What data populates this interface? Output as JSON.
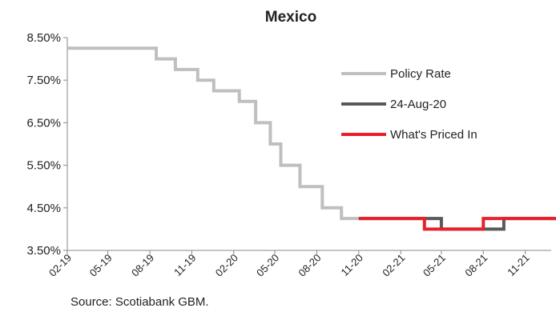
{
  "chart_data": {
    "type": "line",
    "title": "Mexico",
    "xlabel": "",
    "ylabel": "",
    "x_ticks": [
      "02-19",
      "05-19",
      "08-19",
      "11-19",
      "02-20",
      "05-20",
      "08-20",
      "11-20",
      "02-21",
      "05-21",
      "08-21",
      "11-21"
    ],
    "y_ticks": [
      "8.50%",
      "7.50%",
      "6.50%",
      "5.50%",
      "4.50%",
      "3.50%"
    ],
    "ylim": [
      3.5,
      8.5
    ],
    "grid": false,
    "legend_placement": "right",
    "series": [
      {
        "name": "Policy Rate",
        "color": "#bfbfbf",
        "step": true,
        "points": [
          [
            "2019-02-01",
            8.25
          ],
          [
            "2019-08-15",
            8.0
          ],
          [
            "2019-09-26",
            7.75
          ],
          [
            "2019-11-14",
            7.5
          ],
          [
            "2019-12-19",
            7.25
          ],
          [
            "2020-02-13",
            7.0
          ],
          [
            "2020-03-20",
            6.5
          ],
          [
            "2020-04-21",
            6.0
          ],
          [
            "2020-05-14",
            5.5
          ],
          [
            "2020-06-25",
            5.0
          ],
          [
            "2020-08-13",
            4.5
          ],
          [
            "2020-09-24",
            4.25
          ],
          [
            "2020-11-01",
            4.25
          ]
        ]
      },
      {
        "name": "24-Aug-20",
        "color": "#595959",
        "step": true,
        "points": [
          [
            "2020-11-01",
            4.25
          ],
          [
            "2021-05-01",
            4.0
          ],
          [
            "2021-09-15",
            4.25
          ],
          [
            "2022-01-10",
            4.25
          ]
        ]
      },
      {
        "name": "What's Priced In",
        "color": "#e8202a",
        "step": true,
        "points": [
          [
            "2020-11-01",
            4.25
          ],
          [
            "2021-03-25",
            4.0
          ],
          [
            "2021-08-01",
            4.25
          ],
          [
            "2022-01-10",
            4.25
          ]
        ]
      }
    ]
  },
  "footer": {
    "source": "Source: Scotiabank GBM."
  }
}
